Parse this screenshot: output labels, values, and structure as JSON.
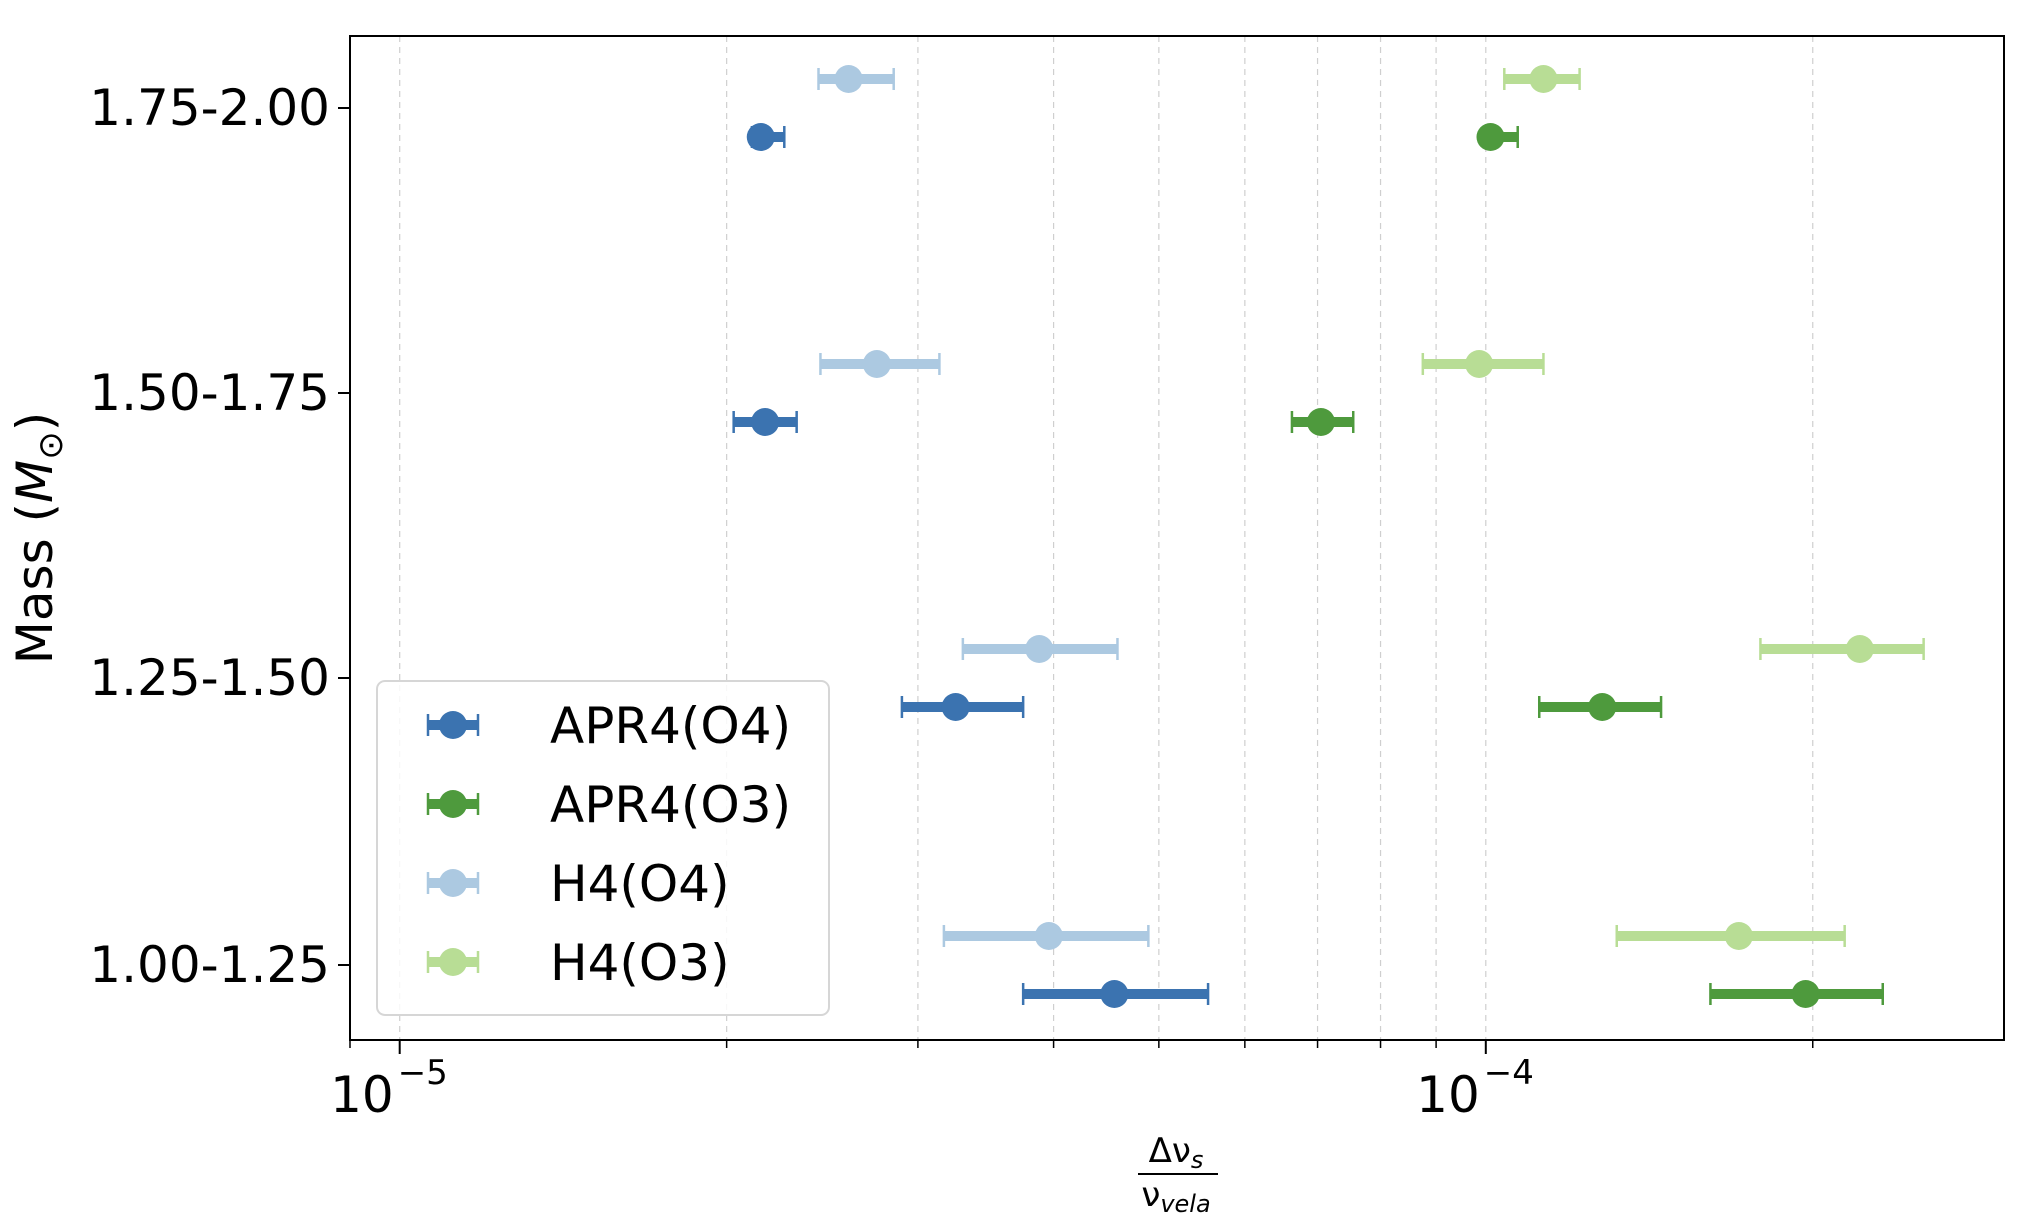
{
  "chart_data": {
    "type": "errorbar",
    "xscale": "log",
    "xlim": [
      9e-06,
      0.0003
    ],
    "grid": {
      "x": true,
      "y": false,
      "style": "dashed"
    },
    "xticks": [
      {
        "value": 1e-05,
        "base": "10",
        "exp": "−5"
      },
      {
        "value": 0.0001,
        "base": "10",
        "exp": "−4"
      }
    ],
    "xlabel": {
      "numerator": "Δν",
      "numerator_sub": "s",
      "denominator": "ν",
      "denominator_sub": "vela"
    },
    "ylabel": {
      "prefix": "Mass (",
      "symbol": "M",
      "sub": "⊙",
      "suffix": ")"
    },
    "categories": [
      "1.00-1.25",
      "1.25-1.50",
      "1.50-1.75",
      "1.75-2.00"
    ],
    "legend": {
      "position": "lower-left"
    },
    "series": [
      {
        "name": "APR4(O4)",
        "color": "#3b73b0",
        "points": [
          {
            "category": "1.00-1.25",
            "x": 4.55e-05,
            "xerr_low": 3.75e-05,
            "xerr_high": 5.55e-05
          },
          {
            "category": "1.25-1.50",
            "x": 3.25e-05,
            "xerr_low": 2.9e-05,
            "xerr_high": 3.75e-05
          },
          {
            "category": "1.50-1.75",
            "x": 2.17e-05,
            "xerr_low": 2.03e-05,
            "xerr_high": 2.32e-05
          },
          {
            "category": "1.75-2.00",
            "x": 2.15e-05,
            "xerr_low": 2.11e-05,
            "xerr_high": 2.26e-05
          }
        ]
      },
      {
        "name": "APR4(O3)",
        "color": "#4e9a3d",
        "points": [
          {
            "category": "1.00-1.25",
            "x": 0.000197,
            "xerr_low": 0.000161,
            "xerr_high": 0.000232
          },
          {
            "category": "1.25-1.50",
            "x": 0.000128,
            "xerr_low": 0.000112,
            "xerr_high": 0.000145
          },
          {
            "category": "1.50-1.75",
            "x": 7.05e-05,
            "xerr_low": 6.63e-05,
            "xerr_high": 7.55e-05
          },
          {
            "category": "1.75-2.00",
            "x": 0.000101,
            "xerr_low": 0.0001,
            "xerr_high": 0.000107
          }
        ]
      },
      {
        "name": "H4(O4)",
        "color": "#acc9e1",
        "points": [
          {
            "category": "1.00-1.25",
            "x": 3.96e-05,
            "xerr_low": 3.17e-05,
            "xerr_high": 4.89e-05
          },
          {
            "category": "1.25-1.50",
            "x": 3.88e-05,
            "xerr_low": 3.3e-05,
            "xerr_high": 4.58e-05
          },
          {
            "category": "1.50-1.75",
            "x": 2.75e-05,
            "xerr_low": 2.44e-05,
            "xerr_high": 3.14e-05
          },
          {
            "category": "1.75-2.00",
            "x": 2.59e-05,
            "xerr_low": 2.43e-05,
            "xerr_high": 2.85e-05
          }
        ]
      },
      {
        "name": "H4(O3)",
        "color": "#b8dd95",
        "points": [
          {
            "category": "1.00-1.25",
            "x": 0.000171,
            "xerr_low": 0.000132,
            "xerr_high": 0.000214
          },
          {
            "category": "1.25-1.50",
            "x": 0.000221,
            "xerr_low": 0.000179,
            "xerr_high": 0.000253
          },
          {
            "category": "1.50-1.75",
            "x": 9.86e-05,
            "xerr_low": 8.75e-05,
            "xerr_high": 0.000113
          },
          {
            "category": "1.75-2.00",
            "x": 0.000113,
            "xerr_low": 0.000104,
            "xerr_high": 0.000122
          }
        ]
      }
    ]
  }
}
